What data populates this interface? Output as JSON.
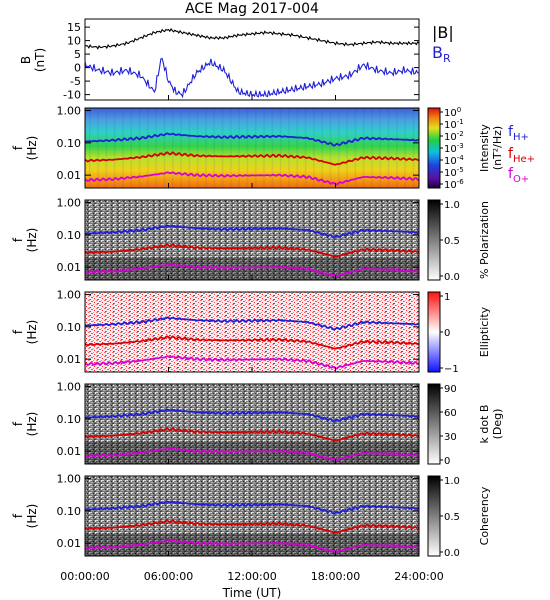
{
  "title": "ACE Mag 2017-004",
  "xlabel": "Time (UT)",
  "time_ticks": [
    "00:00:00",
    "06:00:00",
    "12:00:00",
    "18:00:00",
    "24:00:00"
  ],
  "legend_top": [
    {
      "label": "|B|",
      "sub": "",
      "color": "#000000"
    },
    {
      "label": "B",
      "sub": "R",
      "color": "#1f1fd6"
    }
  ],
  "legend_freq": [
    {
      "label": "f",
      "sub": "H+",
      "color": "#1f1fd6"
    },
    {
      "label": "f",
      "sub": "He+",
      "color": "#d60000"
    },
    {
      "label": "f",
      "sub": "O+",
      "color": "#d400d4"
    }
  ],
  "panels": [
    {
      "id": "mag",
      "ylabel": "B",
      "yunit": "(nT)",
      "yticks": [
        "15",
        "10",
        "5",
        "0",
        "-5",
        "-10"
      ]
    },
    {
      "id": "intensity",
      "ylabel": "f",
      "yunit": "(Hz)",
      "yticks": [
        "1.00",
        "0.10",
        "0.01"
      ],
      "cbar_label": "Intensity",
      "cbar_unit": "(nT²/Hz)",
      "cbar_ticks": [
        {
          "b": "10",
          "e": "0"
        },
        {
          "b": "10",
          "e": "-1"
        },
        {
          "b": "10",
          "e": "-2"
        },
        {
          "b": "10",
          "e": "-3"
        },
        {
          "b": "10",
          "e": "-4"
        },
        {
          "b": "10",
          "e": "-5"
        },
        {
          "b": "10",
          "e": "-6"
        }
      ]
    },
    {
      "id": "polarization",
      "ylabel": "f",
      "yunit": "(Hz)",
      "yticks": [
        "1.00",
        "0.10",
        "0.01"
      ],
      "cbar_label": "% Polarization",
      "cbar_unit": "",
      "cbar_ticks": [
        "1.0",
        "0.5",
        "0.0"
      ]
    },
    {
      "id": "ellipticity",
      "ylabel": "f",
      "yunit": "(Hz)",
      "yticks": [
        "1.00",
        "0.10",
        "0.01"
      ],
      "cbar_label": "Ellipticity",
      "cbar_unit": "",
      "cbar_ticks": [
        "1",
        "0",
        "−1"
      ]
    },
    {
      "id": "kdotb",
      "ylabel": "f",
      "yunit": "(Hz)",
      "yticks": [
        "1.00",
        "0.10",
        "0.01"
      ],
      "cbar_label": "k dot B",
      "cbar_unit": "(Deg)",
      "cbar_ticks": [
        "90",
        "60",
        "30",
        "0"
      ]
    },
    {
      "id": "coherency",
      "ylabel": "f",
      "yunit": "(Hz)",
      "yticks": [
        "1.00",
        "0.10",
        "0.01"
      ],
      "cbar_label": "Coherency",
      "cbar_unit": "",
      "cbar_ticks": [
        "1.0",
        "0.5",
        "0.0"
      ]
    }
  ],
  "chart_data": {
    "type": "line",
    "x_unit": "hours UT",
    "xlim": [
      0,
      24
    ],
    "ylim_B": [
      -12,
      18
    ],
    "ylim_f": [
      0.004,
      1.2
    ],
    "yscale_f": "log",
    "series_B": [
      {
        "name": "|B|",
        "color": "#000000",
        "x": [
          0,
          1,
          2,
          3,
          4,
          5,
          6,
          7,
          8,
          9,
          10,
          11,
          12,
          13,
          14,
          15,
          16,
          17,
          18,
          19,
          20,
          21,
          22,
          23,
          24
        ],
        "y": [
          8,
          7.5,
          8,
          9,
          11,
          13,
          14,
          13,
          12,
          11,
          11,
          12,
          12.5,
          13,
          12.5,
          12,
          11,
          10,
          9,
          8.5,
          9,
          9.5,
          9,
          9,
          9
        ]
      },
      {
        "name": "B_R",
        "color": "#1f1fd6",
        "x": [
          0,
          1,
          2,
          3,
          4,
          5,
          5.5,
          6,
          6.5,
          7,
          8,
          9,
          10,
          11,
          12,
          13,
          14,
          15,
          16,
          17,
          18,
          19,
          20,
          21,
          22,
          23,
          24
        ],
        "y": [
          1,
          -1,
          -2,
          -1,
          -3,
          -9,
          4,
          -5,
          -9,
          -10,
          -2,
          2,
          -1,
          -9,
          -10,
          -10,
          -9,
          -8,
          -7,
          -6,
          -4,
          -3,
          1,
          -1,
          -2,
          -1,
          -2
        ]
      }
    ],
    "series_f": [
      {
        "name": "f_H+",
        "color": "#1f1fd6",
        "x": [
          0,
          2,
          4,
          6,
          8,
          10,
          12,
          14,
          16,
          18,
          20,
          22,
          24
        ],
        "y": [
          0.11,
          0.12,
          0.14,
          0.19,
          0.16,
          0.15,
          0.155,
          0.16,
          0.14,
          0.085,
          0.14,
          0.13,
          0.12
        ]
      },
      {
        "name": "f_He+",
        "color": "#d60000",
        "x": [
          0,
          2,
          4,
          6,
          8,
          10,
          12,
          14,
          16,
          18,
          20,
          22,
          24
        ],
        "y": [
          0.028,
          0.03,
          0.036,
          0.048,
          0.04,
          0.038,
          0.039,
          0.04,
          0.035,
          0.021,
          0.035,
          0.033,
          0.03
        ]
      },
      {
        "name": "f_O+",
        "color": "#d400d4",
        "x": [
          0,
          2,
          4,
          6,
          8,
          10,
          12,
          14,
          16,
          18,
          20,
          22,
          24
        ],
        "y": [
          0.007,
          0.0075,
          0.009,
          0.012,
          0.01,
          0.0095,
          0.0098,
          0.01,
          0.0088,
          0.0053,
          0.0088,
          0.0083,
          0.0075
        ]
      }
    ],
    "colorbars": {
      "intensity": {
        "scale": "log",
        "range": [
          1e-06,
          1
        ]
      },
      "polarization": {
        "range": [
          0,
          1
        ]
      },
      "ellipticity": {
        "range": [
          -1,
          1
        ]
      },
      "kdotb": {
        "range": [
          0,
          90
        ]
      },
      "coherency": {
        "range": [
          0,
          1
        ]
      }
    }
  }
}
